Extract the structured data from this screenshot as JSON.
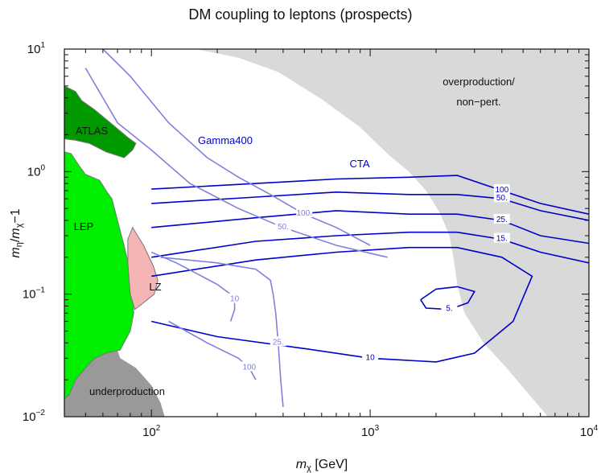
{
  "chart_data": {
    "type": "contour",
    "title": "DM coupling to leptons (prospects)",
    "xlabel": "m_χ [GeV]",
    "ylabel": "m_η/m_χ−1",
    "x_scale": "log",
    "y_scale": "log",
    "xlim": [
      40,
      10000
    ],
    "ylim": [
      0.01,
      10
    ],
    "x_ticks": [
      {
        "value": 100,
        "base": "10",
        "exp": "2"
      },
      {
        "value": 1000,
        "base": "10",
        "exp": "3"
      },
      {
        "value": 10000,
        "base": "10",
        "exp": "4"
      }
    ],
    "y_ticks": [
      {
        "value": 0.01,
        "base": "10",
        "exp": "−2"
      },
      {
        "value": 0.1,
        "base": "10",
        "exp": "−1"
      },
      {
        "value": 1,
        "base": "10",
        "exp": "0"
      },
      {
        "value": 10,
        "base": "10",
        "exp": "1"
      }
    ],
    "regions": [
      {
        "name": "overproduction/ non−pert.",
        "line1": "overproduction/",
        "line2": "non−pert.",
        "color": "#d9d9d9",
        "points": [
          [
            160,
            10
          ],
          [
            10000,
            10
          ],
          [
            10000,
            0.01
          ],
          [
            6500,
            0.01
          ],
          [
            4200,
            0.025
          ],
          [
            3300,
            0.04
          ],
          [
            2700,
            0.07
          ],
          [
            2500,
            0.12
          ],
          [
            2400,
            0.2
          ],
          [
            2300,
            0.3
          ],
          [
            2100,
            0.45
          ],
          [
            1800,
            0.7
          ],
          [
            1500,
            1.0
          ],
          [
            1200,
            1.4
          ],
          [
            900,
            2.3
          ],
          [
            600,
            3.9
          ],
          [
            380,
            6.5
          ],
          [
            250,
            8.5
          ]
        ]
      },
      {
        "name": "underproduction",
        "label": "underproduction",
        "color": "#999999",
        "points": [
          [
            40,
            0.01
          ],
          [
            115,
            0.01
          ],
          [
            110,
            0.013
          ],
          [
            100,
            0.018
          ],
          [
            85,
            0.025
          ],
          [
            72,
            0.03
          ],
          [
            68,
            0.04
          ],
          [
            62,
            0.06
          ],
          [
            58,
            0.09
          ],
          [
            55,
            0.11
          ],
          [
            52,
            0.13
          ],
          [
            48,
            0.14
          ],
          [
            44,
            0.13
          ],
          [
            40,
            0.12
          ]
        ]
      },
      {
        "name": "LEP",
        "label": "LEP",
        "color": "#00ee00",
        "points": [
          [
            40,
            1.45
          ],
          [
            43,
            1.4
          ],
          [
            47,
            1.1
          ],
          [
            50,
            0.95
          ],
          [
            58,
            0.85
          ],
          [
            62,
            0.7
          ],
          [
            66,
            0.6
          ],
          [
            70,
            0.4
          ],
          [
            75,
            0.25
          ],
          [
            80,
            0.15
          ],
          [
            82,
            0.1
          ],
          [
            83,
            0.07
          ],
          [
            80,
            0.05
          ],
          [
            72,
            0.035
          ],
          [
            62,
            0.033
          ],
          [
            55,
            0.03
          ],
          [
            50,
            0.025
          ],
          [
            45,
            0.02
          ],
          [
            42,
            0.015
          ],
          [
            40,
            0.014
          ]
        ]
      },
      {
        "name": "ATLAS",
        "label": "ATLAS",
        "color": "#009900",
        "points": [
          [
            40,
            5.0
          ],
          [
            45,
            4.5
          ],
          [
            48,
            3.8
          ],
          [
            55,
            3.2
          ],
          [
            65,
            2.5
          ],
          [
            78,
            1.9
          ],
          [
            85,
            1.7
          ],
          [
            82,
            1.5
          ],
          [
            75,
            1.3
          ],
          [
            62,
            1.45
          ],
          [
            52,
            1.7
          ],
          [
            45,
            1.8
          ],
          [
            40,
            1.85
          ]
        ]
      },
      {
        "name": "LZ",
        "label": "LZ",
        "color": "#f5b5b5",
        "points": [
          [
            82,
            0.35
          ],
          [
            92,
            0.25
          ],
          [
            102,
            0.17
          ],
          [
            107,
            0.13
          ],
          [
            103,
            0.1
          ],
          [
            92,
            0.085
          ],
          [
            84,
            0.075
          ],
          [
            80,
            0.1
          ],
          [
            78,
            0.18
          ],
          [
            78,
            0.28
          ]
        ]
      }
    ],
    "series": [
      {
        "name": "CTA",
        "color": "#0000cc",
        "contours": [
          {
            "label": "100",
            "points": [
              [
                100,
                0.72
              ],
              [
                300,
                0.8
              ],
              [
                700,
                0.87
              ],
              [
                1500,
                0.9
              ],
              [
                2500,
                0.93
              ],
              [
                4000,
                0.7
              ],
              [
                6000,
                0.55
              ],
              [
                10000,
                0.45
              ]
            ]
          },
          {
            "label": "50.",
            "points": [
              [
                100,
                0.55
              ],
              [
                300,
                0.62
              ],
              [
                700,
                0.68
              ],
              [
                1500,
                0.65
              ],
              [
                2500,
                0.65
              ],
              [
                4000,
                0.6
              ],
              [
                6000,
                0.48
              ],
              [
                10000,
                0.4
              ]
            ]
          },
          {
            "label": "25.",
            "points": [
              [
                100,
                0.35
              ],
              [
                300,
                0.42
              ],
              [
                700,
                0.48
              ],
              [
                1500,
                0.45
              ],
              [
                2500,
                0.45
              ],
              [
                4000,
                0.4
              ],
              [
                6000,
                0.3
              ],
              [
                10000,
                0.26
              ]
            ]
          },
          {
            "label": "15.",
            "points": [
              [
                100,
                0.2
              ],
              [
                300,
                0.27
              ],
              [
                700,
                0.3
              ],
              [
                1500,
                0.32
              ],
              [
                2500,
                0.32
              ],
              [
                4000,
                0.28
              ],
              [
                6000,
                0.22
              ],
              [
                10000,
                0.18
              ]
            ]
          },
          {
            "label": "10",
            "points": [
              [
                100,
                0.14
              ],
              [
                300,
                0.19
              ],
              [
                700,
                0.22
              ],
              [
                1500,
                0.24
              ],
              [
                2500,
                0.24
              ],
              [
                4000,
                0.2
              ],
              [
                5500,
                0.14
              ],
              [
                4500,
                0.06
              ],
              [
                3000,
                0.033
              ],
              [
                2000,
                0.028
              ],
              [
                1000,
                0.03
              ],
              [
                500,
                0.036
              ],
              [
                200,
                0.045
              ],
              [
                100,
                0.06
              ]
            ]
          },
          {
            "label": "5.",
            "points": [
              [
                1700,
                0.09
              ],
              [
                2000,
                0.11
              ],
              [
                2500,
                0.115
              ],
              [
                3000,
                0.105
              ],
              [
                2800,
                0.085
              ],
              [
                2300,
                0.075
              ],
              [
                1800,
                0.077
              ],
              [
                1700,
                0.09
              ]
            ]
          }
        ]
      },
      {
        "name": "Gamma400",
        "color": "#8080dd",
        "contours": [
          {
            "label": "50.",
            "points": [
              [
                50,
                7.0
              ],
              [
                60,
                4.0
              ],
              [
                70,
                2.5
              ],
              [
                100,
                1.5
              ],
              [
                150,
                0.8
              ],
              [
                250,
                0.5
              ],
              [
                400,
                0.35
              ],
              [
                700,
                0.25
              ],
              [
                1200,
                0.2
              ]
            ]
          },
          {
            "label": "100.",
            "points": [
              [
                60,
                10
              ],
              [
                80,
                6.0
              ],
              [
                120,
                2.5
              ],
              [
                180,
                1.3
              ],
              [
                250,
                0.9
              ],
              [
                350,
                0.65
              ],
              [
                500,
                0.45
              ],
              [
                700,
                0.35
              ],
              [
                1000,
                0.25
              ]
            ]
          },
          {
            "label": "10",
            "points": [
              [
                100,
                0.22
              ],
              [
                130,
                0.18
              ],
              [
                170,
                0.14
              ],
              [
                200,
                0.12
              ],
              [
                230,
                0.1
              ],
              [
                240,
                0.09
              ],
              [
                240,
                0.075
              ],
              [
                230,
                0.06
              ]
            ]
          },
          {
            "label": "25.",
            "points": [
              [
                110,
                0.2
              ],
              [
                200,
                0.18
              ],
              [
                300,
                0.16
              ],
              [
                350,
                0.13
              ],
              [
                360,
                0.1
              ],
              [
                370,
                0.07
              ],
              [
                380,
                0.04
              ],
              [
                390,
                0.02
              ],
              [
                400,
                0.012
              ]
            ]
          },
          {
            "label": "100",
            "points": [
              [
                120,
                0.06
              ],
              [
                180,
                0.04
              ],
              [
                250,
                0.03
              ],
              [
                280,
                0.025
              ],
              [
                300,
                0.02
              ]
            ]
          }
        ]
      }
    ],
    "annotations": [
      {
        "text": "Gamma400",
        "color": "#0000cc"
      },
      {
        "text": "CTA",
        "color": "#0000cc"
      }
    ]
  }
}
